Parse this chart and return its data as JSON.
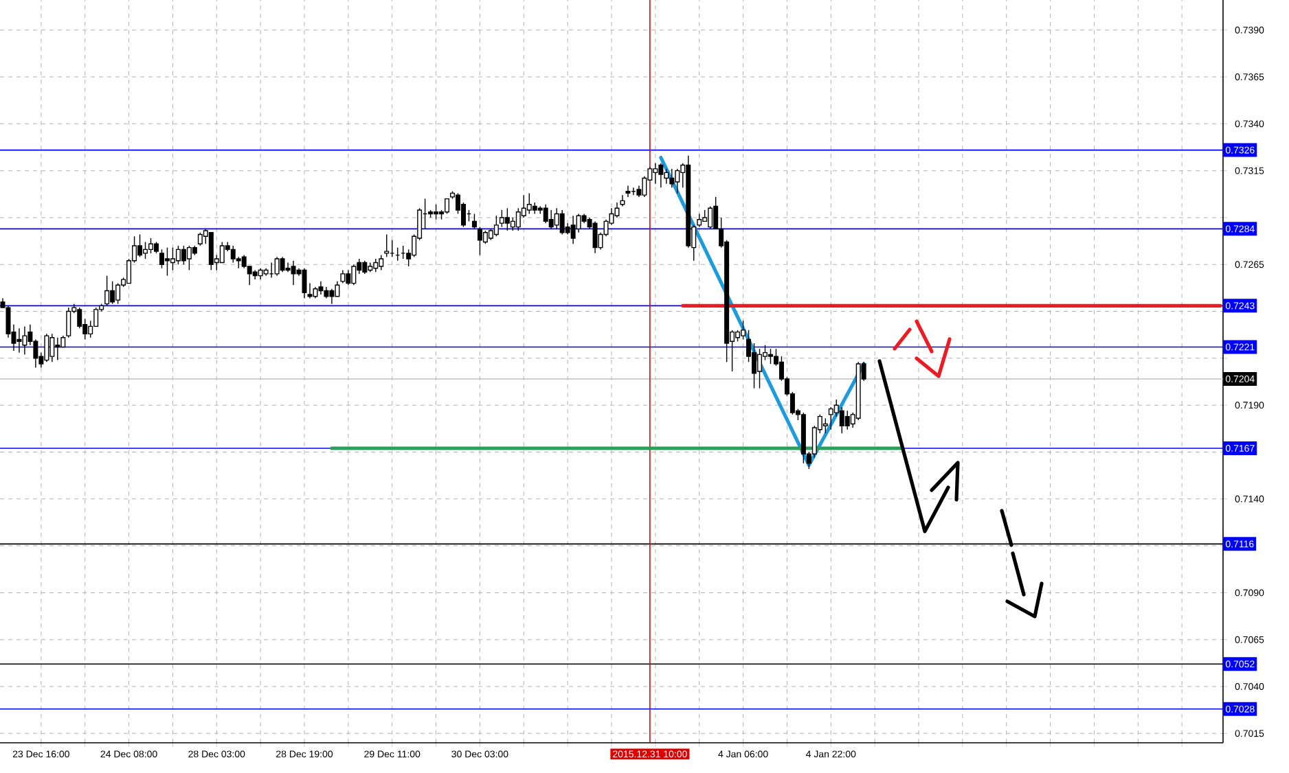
{
  "chart_data": {
    "type": "candlestick",
    "categories": [
      null,
      null,
      null,
      null,
      null,
      null,
      null,
      "23 Dec 16:00",
      null,
      null,
      null,
      null,
      null,
      null,
      null,
      null,
      null,
      null,
      null,
      null,
      null,
      null,
      null,
      "24 Dec 08:00",
      null,
      null,
      null,
      null,
      null,
      null,
      null,
      null,
      null,
      null,
      null,
      null,
      null,
      null,
      null,
      "28 Dec 03:00",
      null,
      null,
      null,
      null,
      null,
      null,
      null,
      null,
      null,
      null,
      null,
      null,
      null,
      null,
      null,
      "28 Dec 19:00",
      null,
      null,
      null,
      null,
      null,
      null,
      null,
      null,
      null,
      null,
      null,
      null,
      null,
      null,
      null,
      "29 Dec 11:00",
      null,
      null,
      null,
      null,
      null,
      null,
      null,
      null,
      null,
      null,
      null,
      null,
      null,
      null,
      null,
      "30 Dec 03:00",
      null,
      null,
      null,
      null,
      null,
      null,
      null,
      null,
      null,
      null,
      null,
      null,
      null,
      null,
      null,
      null,
      null,
      null,
      null,
      null,
      null,
      null,
      null,
      null,
      null,
      null,
      null,
      null,
      null,
      null,
      "2015.12.31 10:00",
      null,
      null,
      null,
      null,
      null,
      null,
      null,
      null,
      null,
      null,
      null,
      null,
      null,
      null,
      null,
      null,
      "4 Jan 06:00",
      null,
      null,
      null,
      null,
      null,
      null,
      null,
      null,
      null,
      null,
      null,
      null,
      null,
      null,
      null,
      "4 Jan 22:00",
      null,
      null,
      null,
      null,
      null,
      null,
      null,
      null,
      null,
      null,
      null,
      null,
      null,
      null,
      null,
      null,
      null,
      null,
      null,
      null,
      null,
      null,
      null,
      null,
      null,
      null,
      null,
      null,
      null,
      null,
      null,
      null,
      null,
      null,
      null,
      null,
      null,
      null,
      null,
      null,
      null,
      null,
      null,
      null,
      null,
      null,
      null,
      null,
      null,
      null,
      null,
      null,
      null,
      null,
      null,
      null,
      null,
      null,
      null,
      null,
      null,
      null,
      null,
      null,
      null,
      null,
      null,
      null,
      null,
      null,
      null
    ],
    "ohlc": [
      [
        0.7245,
        0.7247,
        0.7242,
        0.7242
      ],
      [
        0.7242,
        0.7243,
        0.7226,
        0.7228
      ],
      [
        0.7229,
        0.7233,
        0.7219,
        0.7223
      ],
      [
        0.7225,
        0.7231,
        0.7218,
        0.7224
      ],
      [
        0.7222,
        0.7232,
        0.7217,
        0.7227
      ],
      [
        0.7229,
        0.7233,
        0.7222,
        0.7224
      ],
      [
        0.7224,
        0.7225,
        0.721,
        0.7215
      ],
      [
        0.7216,
        0.7218,
        0.721,
        0.7212
      ],
      [
        0.7214,
        0.7228,
        0.7213,
        0.7227
      ],
      [
        0.7216,
        0.7228,
        0.7213,
        0.7226
      ],
      [
        0.7222,
        0.7226,
        0.7214,
        0.7221
      ],
      [
        0.7221,
        0.7227,
        0.7221,
        0.7226
      ],
      [
        0.7227,
        0.7242,
        0.7226,
        0.724
      ],
      [
        0.724,
        0.7244,
        0.7239,
        0.7242
      ],
      [
        0.7241,
        0.7242,
        0.7231,
        0.7232
      ],
      [
        0.7233,
        0.7236,
        0.7225,
        0.7228
      ],
      [
        0.7228,
        0.7235,
        0.7226,
        0.7232
      ],
      [
        0.7232,
        0.7242,
        0.7232,
        0.7241
      ],
      [
        0.7241,
        0.7244,
        0.724,
        0.7243
      ],
      [
        0.7244,
        0.7259,
        0.7243,
        0.7251
      ],
      [
        0.7251,
        0.7256,
        0.7244,
        0.7245
      ],
      [
        0.7246,
        0.7255,
        0.7244,
        0.7254
      ],
      [
        0.7254,
        0.7258,
        0.7253,
        0.7257
      ],
      [
        0.7255,
        0.7268,
        0.7255,
        0.7267
      ],
      [
        0.7267,
        0.728,
        0.7266,
        0.7275
      ],
      [
        0.7275,
        0.7281,
        0.7269,
        0.727
      ],
      [
        0.7271,
        0.7277,
        0.7268,
        0.7273
      ],
      [
        0.7273,
        0.7279,
        0.7271,
        0.7276
      ],
      [
        0.7276,
        0.7277,
        0.7271,
        0.7272
      ],
      [
        0.7271,
        0.7273,
        0.7263,
        0.7265
      ],
      [
        0.7268,
        0.7274,
        0.7259,
        0.7267
      ],
      [
        0.7266,
        0.7274,
        0.7262,
        0.7268
      ],
      [
        0.7267,
        0.7275,
        0.7265,
        0.7273
      ],
      [
        0.7273,
        0.7275,
        0.7265,
        0.7267
      ],
      [
        0.7268,
        0.7275,
        0.7262,
        0.7274
      ],
      [
        0.7274,
        0.7275,
        0.727,
        0.7271
      ],
      [
        0.7276,
        0.7282,
        0.7275,
        0.7281
      ],
      [
        0.728,
        0.7284,
        0.7276,
        0.7283
      ],
      [
        0.7282,
        0.7282,
        0.7262,
        0.7265
      ],
      [
        0.7266,
        0.727,
        0.7262,
        0.7268
      ],
      [
        0.7266,
        0.7277,
        0.7266,
        0.7275
      ],
      [
        0.7275,
        0.7277,
        0.7272,
        0.7273
      ],
      [
        0.7273,
        0.7275,
        0.7266,
        0.7268
      ],
      [
        0.7268,
        0.7269,
        0.7263,
        0.7267
      ],
      [
        0.7269,
        0.727,
        0.7263,
        0.7264
      ],
      [
        0.7264,
        0.7264,
        0.7254,
        0.726
      ],
      [
        0.7261,
        0.7262,
        0.7257,
        0.7259
      ],
      [
        0.7259,
        0.7263,
        0.7257,
        0.7262
      ],
      [
        0.726,
        0.7263,
        0.7259,
        0.7262
      ],
      [
        0.726,
        0.7266,
        0.7258,
        0.726
      ],
      [
        0.726,
        0.7269,
        0.7259,
        0.7268
      ],
      [
        0.7268,
        0.7269,
        0.7261,
        0.7262
      ],
      [
        0.7263,
        0.7266,
        0.7261,
        0.7262
      ],
      [
        0.7264,
        0.7267,
        0.7254,
        0.726
      ],
      [
        0.7262,
        0.7263,
        0.7259,
        0.726
      ],
      [
        0.7262,
        0.7263,
        0.7247,
        0.725
      ],
      [
        0.7249,
        0.7255,
        0.7247,
        0.7248
      ],
      [
        0.7248,
        0.7253,
        0.7247,
        0.7252
      ],
      [
        0.7253,
        0.7256,
        0.7249,
        0.7251
      ],
      [
        0.7251,
        0.7253,
        0.7247,
        0.7248
      ],
      [
        0.7251,
        0.7252,
        0.7244,
        0.7248
      ],
      [
        0.7248,
        0.7256,
        0.7248,
        0.7254
      ],
      [
        0.7256,
        0.7262,
        0.7255,
        0.726
      ],
      [
        0.726,
        0.7262,
        0.7254,
        0.7255
      ],
      [
        0.7255,
        0.7265,
        0.7254,
        0.7264
      ],
      [
        0.7266,
        0.7268,
        0.726,
        0.7262
      ],
      [
        0.7266,
        0.7267,
        0.726,
        0.7261
      ],
      [
        0.7262,
        0.7266,
        0.7261,
        0.7264
      ],
      [
        0.7263,
        0.7268,
        0.7261,
        0.7266
      ],
      [
        0.7264,
        0.727,
        0.7262,
        0.7268
      ],
      [
        0.7271,
        0.7281,
        0.7269,
        0.7272
      ],
      [
        0.7271,
        0.7278,
        0.7269,
        0.7271
      ],
      [
        0.727,
        0.7274,
        0.7267,
        0.727
      ],
      [
        0.7271,
        0.7275,
        0.7268,
        0.7271
      ],
      [
        0.7271,
        0.7273,
        0.7264,
        0.7268
      ],
      [
        0.727,
        0.7281,
        0.7269,
        0.728
      ],
      [
        0.7279,
        0.7295,
        0.7278,
        0.7294
      ],
      [
        0.7292,
        0.73,
        0.7284,
        0.7292
      ],
      [
        0.7293,
        0.7294,
        0.729,
        0.7292
      ],
      [
        0.7293,
        0.7297,
        0.7289,
        0.7292
      ],
      [
        0.7293,
        0.7294,
        0.7289,
        0.7292
      ],
      [
        0.7293,
        0.73,
        0.7292,
        0.73
      ],
      [
        0.7301,
        0.7304,
        0.73,
        0.7303
      ],
      [
        0.7302,
        0.7303,
        0.7292,
        0.7294
      ],
      [
        0.7297,
        0.7298,
        0.7285,
        0.7286
      ],
      [
        0.7292,
        0.7294,
        0.7288,
        0.7292
      ],
      [
        0.7288,
        0.7292,
        0.7284,
        0.7285
      ],
      [
        0.7284,
        0.7285,
        0.727,
        0.7278
      ],
      [
        0.7277,
        0.7283,
        0.7276,
        0.7282
      ],
      [
        0.7279,
        0.7284,
        0.7278,
        0.7283
      ],
      [
        0.7281,
        0.7291,
        0.728,
        0.7286
      ],
      [
        0.7287,
        0.7294,
        0.7285,
        0.729
      ],
      [
        0.729,
        0.7295,
        0.7283,
        0.7287
      ],
      [
        0.7285,
        0.729,
        0.7283,
        0.7288
      ],
      [
        0.7285,
        0.7295,
        0.7283,
        0.7293
      ],
      [
        0.7291,
        0.7302,
        0.729,
        0.7295
      ],
      [
        0.7294,
        0.7303,
        0.7292,
        0.7297
      ],
      [
        0.7296,
        0.7298,
        0.7292,
        0.7294
      ],
      [
        0.7295,
        0.7296,
        0.7292,
        0.7294
      ],
      [
        0.7295,
        0.7297,
        0.7287,
        0.7288
      ],
      [
        0.7289,
        0.7294,
        0.7284,
        0.7285
      ],
      [
        0.7286,
        0.7295,
        0.7284,
        0.7292
      ],
      [
        0.7292,
        0.7294,
        0.7281,
        0.7282
      ],
      [
        0.7285,
        0.7287,
        0.7281,
        0.7282
      ],
      [
        0.7286,
        0.7291,
        0.7276,
        0.7279
      ],
      [
        0.7284,
        0.7292,
        0.7282,
        0.7291
      ],
      [
        0.7291,
        0.7292,
        0.7287,
        0.7288
      ],
      [
        0.7289,
        0.729,
        0.7284,
        0.7285
      ],
      [
        0.7287,
        0.7288,
        0.7271,
        0.7274
      ],
      [
        0.7274,
        0.7282,
        0.7273,
        0.7281
      ],
      [
        0.7281,
        0.7289,
        0.728,
        0.7288
      ],
      [
        0.7287,
        0.7295,
        0.7286,
        0.7292
      ],
      [
        0.7291,
        0.7298,
        0.729,
        0.7295
      ],
      [
        0.7297,
        0.7302,
        0.7296,
        0.7299
      ],
      [
        0.7304,
        0.7307,
        0.7301,
        0.7303
      ],
      [
        0.7304,
        0.7306,
        0.7302,
        0.7304
      ],
      [
        0.7305,
        0.7307,
        0.7301,
        0.7302
      ],
      [
        0.7302,
        0.7312,
        0.7301,
        0.7311
      ],
      [
        0.731,
        0.7317,
        0.731,
        0.7316
      ],
      [
        0.7314,
        0.7319,
        0.7308,
        0.7316
      ],
      [
        0.7318,
        0.7319,
        0.7306,
        0.7313
      ],
      [
        0.7311,
        0.7316,
        0.7308,
        0.7314
      ],
      [
        0.7311,
        0.7316,
        0.7306,
        0.7308
      ],
      [
        0.7309,
        0.7316,
        0.7303,
        0.7315
      ],
      [
        0.7314,
        0.7319,
        0.7306,
        0.7318
      ],
      [
        0.7318,
        0.7323,
        0.7274,
        0.7275
      ],
      [
        0.7274,
        0.7286,
        0.7267,
        0.7285
      ],
      [
        0.7286,
        0.7292,
        0.7285,
        0.7289
      ],
      [
        0.7288,
        0.7294,
        0.7288,
        0.729
      ],
      [
        0.7285,
        0.7296,
        0.7284,
        0.7295
      ],
      [
        0.7296,
        0.7301,
        0.7284,
        0.7284
      ],
      [
        0.7284,
        0.729,
        0.7274,
        0.7275
      ],
      [
        0.7277,
        0.7278,
        0.7213,
        0.7223
      ],
      [
        0.7224,
        0.723,
        0.7208,
        0.7229
      ],
      [
        0.7226,
        0.723,
        0.7224,
        0.7229
      ],
      [
        0.7227,
        0.7235,
        0.7225,
        0.723
      ],
      [
        0.7225,
        0.723,
        0.7213,
        0.7216
      ],
      [
        0.7218,
        0.7223,
        0.7199,
        0.7207
      ],
      [
        0.7208,
        0.722,
        0.7199,
        0.7217
      ],
      [
        0.7216,
        0.7222,
        0.7214,
        0.7218
      ],
      [
        0.7217,
        0.722,
        0.7212,
        0.7216
      ],
      [
        0.7216,
        0.722,
        0.7211,
        0.7212
      ],
      [
        0.7213,
        0.7216,
        0.7203,
        0.7204
      ],
      [
        0.7204,
        0.7205,
        0.7195,
        0.7196
      ],
      [
        0.7196,
        0.7197,
        0.7185,
        0.7186
      ],
      [
        0.7187,
        0.7188,
        0.7182,
        0.7185
      ],
      [
        0.7185,
        0.7186,
        0.7159,
        0.7164
      ],
      [
        0.7164,
        0.7165,
        0.7156,
        0.7159
      ],
      [
        0.7164,
        0.7179,
        0.7162,
        0.7178
      ],
      [
        0.7177,
        0.7185,
        0.7175,
        0.7184
      ],
      [
        0.7179,
        0.7183,
        0.7175,
        0.718
      ],
      [
        0.7185,
        0.7189,
        0.7177,
        0.7188
      ],
      [
        0.7186,
        0.7193,
        0.7184,
        0.719
      ],
      [
        0.7187,
        0.7189,
        0.7175,
        0.7179
      ],
      [
        0.7184,
        0.7187,
        0.7177,
        0.7179
      ],
      [
        0.718,
        0.7186,
        0.7178,
        0.7185
      ],
      [
        0.7183,
        0.7213,
        0.7182,
        0.7212
      ],
      [
        0.7212,
        0.7213,
        0.7203,
        0.7204
      ],
      null,
      null,
      null,
      null,
      null,
      null,
      null,
      null,
      null,
      null,
      null,
      null,
      null,
      null,
      null,
      null,
      null,
      null,
      null,
      null,
      null,
      null,
      null,
      null,
      null,
      null,
      null,
      null,
      null,
      null,
      null,
      null,
      null,
      null,
      null,
      null,
      null,
      null,
      null,
      null,
      null,
      null,
      null,
      null,
      null,
      null,
      null,
      null,
      null,
      null,
      null,
      null,
      null,
      null,
      null,
      null,
      null,
      null,
      null,
      null,
      null,
      null,
      null,
      null,
      null
    ],
    "series": [
      {
        "type": "line",
        "color": "#1e9bdc",
        "values": [
          null,
          null,
          null,
          null,
          null,
          null,
          null,
          null,
          null,
          null,
          null,
          null,
          null,
          null,
          null,
          null,
          null,
          null,
          null,
          null,
          null,
          null,
          null,
          null,
          null,
          null,
          null,
          null,
          null,
          null,
          null,
          null,
          null,
          null,
          null,
          null,
          null,
          null,
          null,
          null,
          null,
          null,
          null,
          null,
          null,
          null,
          null,
          null,
          null,
          null,
          null,
          null,
          null,
          null,
          null,
          null,
          null,
          null,
          null,
          null,
          null,
          null,
          null,
          null,
          null,
          null,
          null,
          null,
          null,
          null,
          null,
          null,
          null,
          null,
          null,
          null,
          null,
          null,
          null,
          null,
          null,
          null,
          null,
          null,
          null,
          null,
          null,
          null,
          null,
          null,
          null,
          null,
          null,
          null,
          null,
          null,
          null,
          null,
          null,
          null,
          null,
          null,
          null,
          null,
          null,
          null,
          null,
          null,
          null,
          null,
          null,
          null,
          null,
          null,
          null,
          null,
          null,
          null,
          null,
          null,
          0.7322,
          null,
          null,
          null,
          null,
          null,
          null,
          null,
          null,
          null,
          null,
          null,
          null,
          null,
          null,
          null,
          null,
          null,
          null,
          null,
          null,
          null,
          null,
          null,
          null,
          null,
          null,
          0.7158,
          null,
          null,
          null,
          null,
          null,
          null,
          null,
          null,
          null,
          0.7212,
          null,
          null,
          null,
          null,
          null,
          null,
          null,
          null,
          null,
          null,
          null,
          null,
          null,
          null,
          null,
          null,
          null,
          null,
          null,
          null,
          null,
          null,
          null,
          null,
          null,
          null,
          null,
          null,
          null,
          null,
          null,
          null,
          null,
          null,
          null,
          null,
          null,
          null,
          null,
          null,
          null,
          null,
          null,
          null,
          null,
          null,
          null,
          null,
          null,
          null,
          null,
          null,
          null,
          null,
          null,
          null,
          null,
          null,
          null,
          null,
          null,
          null,
          null,
          null,
          null
        ]
      },
      {
        "type": "line",
        "color": "#ec1c24",
        "values": [
          null,
          null,
          null,
          null,
          null,
          null,
          null,
          null,
          null,
          null,
          null,
          null,
          null,
          null,
          null,
          null,
          null,
          null,
          null,
          null,
          null,
          null,
          null,
          null,
          null,
          null,
          null,
          null,
          null,
          null,
          null,
          null,
          null,
          null,
          null,
          null,
          null,
          null,
          null,
          null,
          null,
          null,
          null,
          null,
          null,
          null,
          null,
          null,
          null,
          null,
          null,
          null,
          null,
          null,
          null,
          null,
          null,
          null,
          null,
          null,
          null,
          null,
          null,
          null,
          null,
          null,
          null,
          null,
          null,
          null,
          null,
          null,
          null,
          null,
          null,
          null,
          null,
          null,
          null,
          null,
          null,
          null,
          null,
          null,
          null,
          null,
          null,
          null,
          null,
          null,
          null,
          null,
          null,
          null,
          null,
          null,
          null,
          null,
          null,
          null,
          null,
          null,
          null,
          null,
          null,
          null,
          null,
          null,
          null,
          null,
          null,
          null,
          null,
          null,
          null,
          null,
          null,
          null,
          null,
          null,
          null,
          null,
          null,
          null,
          0.7243,
          null,
          null,
          null,
          null,
          null,
          null,
          null,
          null,
          null,
          null,
          null,
          null,
          null,
          null,
          null,
          null,
          null,
          null,
          null,
          null,
          null,
          null,
          null,
          null,
          null,
          null,
          null,
          null,
          null,
          null,
          null,
          null,
          null,
          null,
          null,
          null,
          null,
          null,
          null,
          null,
          null,
          null,
          null,
          null,
          null,
          null,
          null,
          null,
          null,
          null,
          null,
          null,
          null,
          null,
          null,
          null,
          null,
          null,
          null,
          null,
          null,
          null,
          null,
          null,
          null,
          null,
          null,
          null,
          null,
          null,
          null,
          null,
          null,
          null,
          null,
          null,
          null,
          null,
          null,
          null,
          null,
          null,
          null,
          null,
          null,
          null,
          null,
          null,
          null,
          null,
          null,
          null,
          null,
          null,
          null,
          null,
          null,
          0.7243
        ]
      },
      {
        "type": "line",
        "color": "#2aa05a",
        "values": [
          null,
          null,
          null,
          null,
          null,
          null,
          null,
          null,
          null,
          null,
          null,
          null,
          null,
          null,
          null,
          null,
          null,
          null,
          null,
          null,
          null,
          null,
          null,
          null,
          null,
          null,
          null,
          null,
          null,
          null,
          null,
          null,
          null,
          null,
          null,
          null,
          null,
          null,
          null,
          null,
          null,
          null,
          null,
          null,
          null,
          null,
          null,
          null,
          null,
          null,
          null,
          null,
          null,
          null,
          null,
          null,
          null,
          null,
          null,
          null,
          0.7167,
          null,
          null,
          null,
          null,
          null,
          null,
          null,
          null,
          null,
          null,
          null,
          null,
          null,
          null,
          null,
          null,
          null,
          null,
          null,
          null,
          null,
          null,
          null,
          null,
          null,
          null,
          null,
          null,
          null,
          null,
          null,
          null,
          null,
          null,
          null,
          null,
          null,
          null,
          null,
          null,
          null,
          null,
          null,
          null,
          null,
          null,
          null,
          null,
          null,
          null,
          null,
          null,
          null,
          null,
          null,
          null,
          null,
          null,
          null,
          null,
          null,
          null,
          null,
          null,
          null,
          null,
          null,
          null,
          null,
          null,
          null,
          null,
          null,
          null,
          null,
          null,
          null,
          null,
          null,
          null,
          null,
          null,
          null,
          null,
          null,
          null,
          null,
          null,
          null,
          null,
          null,
          null,
          null,
          null,
          null,
          null,
          null,
          null,
          null,
          null,
          null,
          null,
          null,
          0.7167,
          null,
          null,
          null,
          null,
          null,
          null,
          null,
          null,
          null,
          null,
          null,
          null,
          null,
          null,
          null,
          null,
          null,
          null,
          null,
          null,
          null,
          null,
          null,
          null,
          null,
          null,
          null,
          null,
          null,
          null,
          null,
          null,
          null,
          null,
          null,
          null,
          null,
          null,
          null,
          null,
          null,
          null,
          null,
          null,
          null,
          null,
          null,
          null,
          null,
          null,
          null,
          null,
          null,
          null,
          null,
          null,
          null,
          null
        ]
      }
    ],
    "ref_lines": [
      {
        "axis": "y",
        "value": 0.7326,
        "label": "0.7326",
        "color": "#0000ff"
      },
      {
        "axis": "y",
        "value": 0.7284,
        "label": "0.7284",
        "color": "#0000ff"
      },
      {
        "axis": "y",
        "value": 0.7243,
        "label": "0.7243",
        "color": "#0000ff"
      },
      {
        "axis": "y",
        "value": 0.7221,
        "label": "0.7221",
        "color": "#0000ff"
      },
      {
        "axis": "y",
        "value": 0.7204,
        "label": "0.7204",
        "color": "#c0c0c0"
      },
      {
        "axis": "y",
        "value": 0.7167,
        "label": "0.7167",
        "color": "#0000ff"
      },
      {
        "axis": "y",
        "value": 0.7116,
        "label": "0.7116",
        "color": "#000000"
      },
      {
        "axis": "y",
        "value": 0.7052,
        "label": "0.7052",
        "color": "#000000"
      },
      {
        "axis": "y",
        "value": 0.7028,
        "label": "0.7028",
        "color": "#0000ff"
      },
      {
        "axis": "x",
        "value": "2015.12.31 10:00",
        "color": "#e00000"
      }
    ],
    "ylim": [
      0.701,
      0.7406
    ],
    "yticks": [
      {
        "value": 0.7015,
        "label": "0.7015"
      },
      {
        "value": 0.704,
        "label": "0.7040"
      },
      {
        "value": 0.7065,
        "label": "0.7065"
      },
      {
        "value": 0.709,
        "label": "0.7090"
      },
      {
        "value": 0.7115,
        "label": null
      },
      {
        "value": 0.714,
        "label": "0.7140"
      },
      {
        "value": 0.7165,
        "label": null
      },
      {
        "value": 0.719,
        "label": "0.7190"
      },
      {
        "value": 0.7215,
        "label": null
      },
      {
        "value": 0.724,
        "label": null
      },
      {
        "value": 0.7265,
        "label": "0.7265"
      },
      {
        "value": 0.729,
        "label": null
      },
      {
        "value": 0.7315,
        "label": "0.7315"
      },
      {
        "value": 0.734,
        "label": "0.7340"
      },
      {
        "value": 0.7365,
        "label": "0.7365"
      },
      {
        "value": 0.739,
        "label": "0.7390"
      }
    ],
    "grid": true
  }
}
